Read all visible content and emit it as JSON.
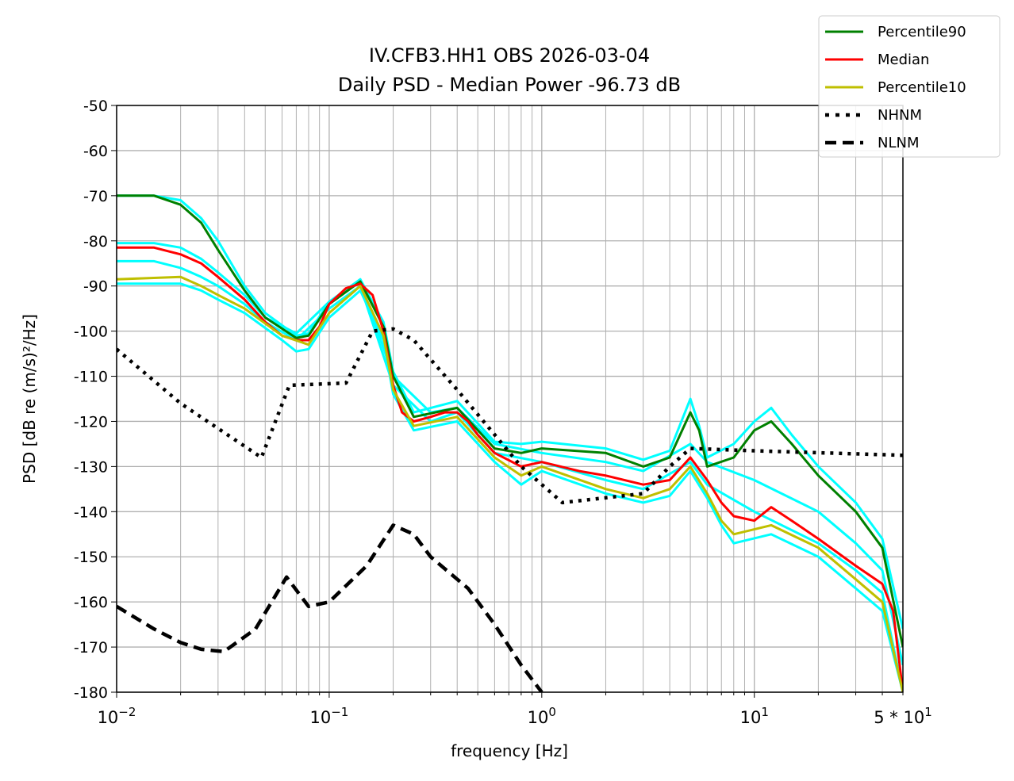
{
  "chart_data": {
    "type": "line",
    "title": "IV.CFB3.HH1 OBS 2026-03-04",
    "subtitle": "Daily PSD - Median Power -96.73 dB",
    "xlabel": "frequency [Hz]",
    "ylabel": "PSD [dB re (m/s)²/Hz]",
    "xscale": "log",
    "xlim": [
      0.01,
      50
    ],
    "ylim": [
      -180,
      -50
    ],
    "grid": true,
    "legend_position": "top-right (outside)",
    "x_ticks": [
      {
        "value": 0.01,
        "base": "10",
        "exp": "−2"
      },
      {
        "value": 0.1,
        "base": "10",
        "exp": "−1"
      },
      {
        "value": 1,
        "base": "10",
        "exp": "0"
      },
      {
        "value": 10,
        "base": "10",
        "exp": "1"
      },
      {
        "value": 50,
        "base": "5 * 10",
        "exp": "1"
      }
    ],
    "y_ticks": [
      "-50",
      "-60",
      "-70",
      "-80",
      "-90",
      "-100",
      "-110",
      "-120",
      "-130",
      "-140",
      "-150",
      "-160",
      "-170",
      "-180"
    ],
    "series": [
      {
        "name": "",
        "color": "#00ffff",
        "style": "solid",
        "x": [
          0.01,
          0.015,
          0.02,
          0.025,
          0.03,
          0.04,
          0.05,
          0.07,
          0.08,
          0.1,
          0.14,
          0.18,
          0.2,
          0.25,
          0.4,
          0.6,
          0.8,
          1,
          2,
          3,
          4,
          5,
          5.5,
          6,
          8,
          10,
          12,
          15,
          20,
          30,
          40,
          50
        ],
        "y": [
          -70,
          -70,
          -71,
          -75,
          -80,
          -90,
          -96,
          -101,
          -100.5,
          -93.5,
          -88.5,
          -98,
          -109,
          -118,
          -115.5,
          -124.5,
          -125,
          -124.5,
          -126,
          -128.5,
          -126.5,
          -115,
          -121,
          -128,
          -125,
          -120,
          -117,
          -123,
          -130,
          -138,
          -146,
          -166
        ]
      },
      {
        "name": "",
        "color": "#00ffff",
        "style": "solid",
        "x": [
          0.01,
          0.015,
          0.02,
          0.025,
          0.03,
          0.04,
          0.05,
          0.07,
          0.1,
          0.14,
          0.2,
          0.3,
          0.4,
          0.6,
          1,
          2,
          3,
          5,
          6,
          10,
          20,
          30,
          40,
          50
        ],
        "y": [
          -80.5,
          -80.5,
          -81.5,
          -84,
          -87,
          -92,
          -97,
          -100.5,
          -93.5,
          -89,
          -110,
          -118,
          -117,
          -125,
          -127,
          -129,
          -131,
          -125,
          -129,
          -133,
          -140,
          -147,
          -153,
          -174
        ]
      },
      {
        "name": "",
        "color": "#00ffff",
        "style": "solid",
        "x": [
          0.01,
          0.015,
          0.02,
          0.025,
          0.03,
          0.04,
          0.05,
          0.07,
          0.1,
          0.14,
          0.2,
          0.3,
          0.4,
          0.6,
          1,
          2,
          3,
          5,
          6,
          10,
          20,
          30,
          40,
          50
        ],
        "y": [
          -84.5,
          -84.5,
          -86,
          -88,
          -90,
          -94,
          -98,
          -102,
          -95,
          -90,
          -112,
          -120,
          -118,
          -127,
          -129,
          -133,
          -135,
          -129,
          -134,
          -140,
          -147,
          -153,
          -158,
          -180
        ]
      },
      {
        "name": "",
        "color": "#00ffff",
        "style": "solid",
        "x": [
          0.01,
          0.02,
          0.025,
          0.03,
          0.04,
          0.06,
          0.07,
          0.08,
          0.1,
          0.14,
          0.18,
          0.2,
          0.25,
          0.4,
          0.6,
          0.8,
          1,
          2,
          3,
          4,
          5,
          6,
          7,
          8,
          12,
          20,
          30,
          40,
          50
        ],
        "y": [
          -89.5,
          -89.5,
          -91,
          -93,
          -96,
          -102,
          -104.5,
          -104,
          -97,
          -91,
          -102,
          -114,
          -122,
          -120,
          -129,
          -134,
          -131,
          -136,
          -138,
          -136.5,
          -131,
          -137,
          -143,
          -147,
          -145,
          -150,
          -157,
          -162,
          -180
        ]
      },
      {
        "name": "Percentile90",
        "color": "#008000",
        "style": "solid",
        "legend": true,
        "x": [
          0.01,
          0.015,
          0.02,
          0.025,
          0.03,
          0.04,
          0.05,
          0.07,
          0.08,
          0.1,
          0.14,
          0.18,
          0.2,
          0.25,
          0.4,
          0.6,
          0.8,
          1,
          2,
          3,
          4,
          5,
          5.5,
          6,
          8,
          10,
          12,
          15,
          20,
          30,
          40,
          50
        ],
        "y": [
          -70,
          -70,
          -72,
          -76,
          -82,
          -91,
          -97,
          -101.5,
          -101,
          -94,
          -89,
          -99,
          -110,
          -119,
          -117,
          -126,
          -127,
          -126,
          -127,
          -130,
          -128,
          -118,
          -122,
          -130,
          -128,
          -122,
          -120,
          -125,
          -132,
          -140,
          -148,
          -170
        ]
      },
      {
        "name": "Median",
        "color": "#ff0000",
        "style": "solid",
        "legend": true,
        "x": [
          0.01,
          0.015,
          0.02,
          0.025,
          0.03,
          0.04,
          0.05,
          0.06,
          0.07,
          0.08,
          0.09,
          0.1,
          0.12,
          0.14,
          0.16,
          0.18,
          0.2,
          0.22,
          0.25,
          0.3,
          0.35,
          0.4,
          0.45,
          0.5,
          0.6,
          0.8,
          1,
          1.5,
          2,
          3,
          4,
          5,
          6,
          7,
          8,
          10,
          12,
          15,
          20,
          30,
          40,
          45,
          50
        ],
        "y": [
          -81.5,
          -81.5,
          -83,
          -85,
          -88,
          -93,
          -98,
          -101,
          -102,
          -102,
          -99,
          -94,
          -90.5,
          -89.5,
          -92,
          -100,
          -112,
          -118,
          -120,
          -119,
          -118,
          -118,
          -120,
          -123,
          -127,
          -130,
          -129,
          -131,
          -132,
          -134,
          -133,
          -128,
          -133,
          -138,
          -141,
          -142,
          -139,
          -142,
          -146,
          -152,
          -156,
          -162,
          -180
        ]
      },
      {
        "name": "Percentile10",
        "color": "#bfbf00",
        "style": "solid",
        "legend": true,
        "x": [
          0.01,
          0.02,
          0.025,
          0.03,
          0.04,
          0.06,
          0.08,
          0.1,
          0.14,
          0.18,
          0.2,
          0.25,
          0.4,
          0.6,
          0.8,
          1,
          2,
          3,
          4,
          5,
          6,
          7,
          8,
          12,
          20,
          30,
          40,
          50
        ],
        "y": [
          -88.5,
          -88,
          -90,
          -92,
          -95,
          -101,
          -103,
          -96,
          -90,
          -101,
          -113,
          -121,
          -119,
          -128,
          -132,
          -130,
          -135,
          -137,
          -135,
          -130,
          -136,
          -142,
          -145,
          -143,
          -148,
          -155,
          -160,
          -180
        ]
      },
      {
        "name": "NHNM",
        "color": "#000000",
        "style": "dotted",
        "legend": true,
        "x": [
          0.01,
          0.02,
          0.048,
          0.065,
          0.12,
          0.16,
          0.2,
          0.25,
          0.4,
          0.8,
          1.25,
          3,
          4,
          5,
          10,
          50
        ],
        "y": [
          -104,
          -116,
          -128,
          -112,
          -111.5,
          -100,
          -99.5,
          -102,
          -113,
          -130,
          -138,
          -136,
          -130,
          -126,
          -126.5,
          -127.5
        ]
      },
      {
        "name": "NLNM",
        "color": "#000000",
        "style": "dashed",
        "legend": true,
        "x": [
          0.01,
          0.015,
          0.02,
          0.025,
          0.032,
          0.045,
          0.063,
          0.08,
          0.1,
          0.15,
          0.2,
          0.25,
          0.3,
          0.45,
          0.6,
          0.8,
          1
        ],
        "y": [
          -161,
          -166,
          -169,
          -170.5,
          -171,
          -166,
          -154.5,
          -161,
          -160,
          -152,
          -143,
          -145,
          -150,
          -157,
          -165,
          -174,
          -180
        ]
      }
    ]
  }
}
